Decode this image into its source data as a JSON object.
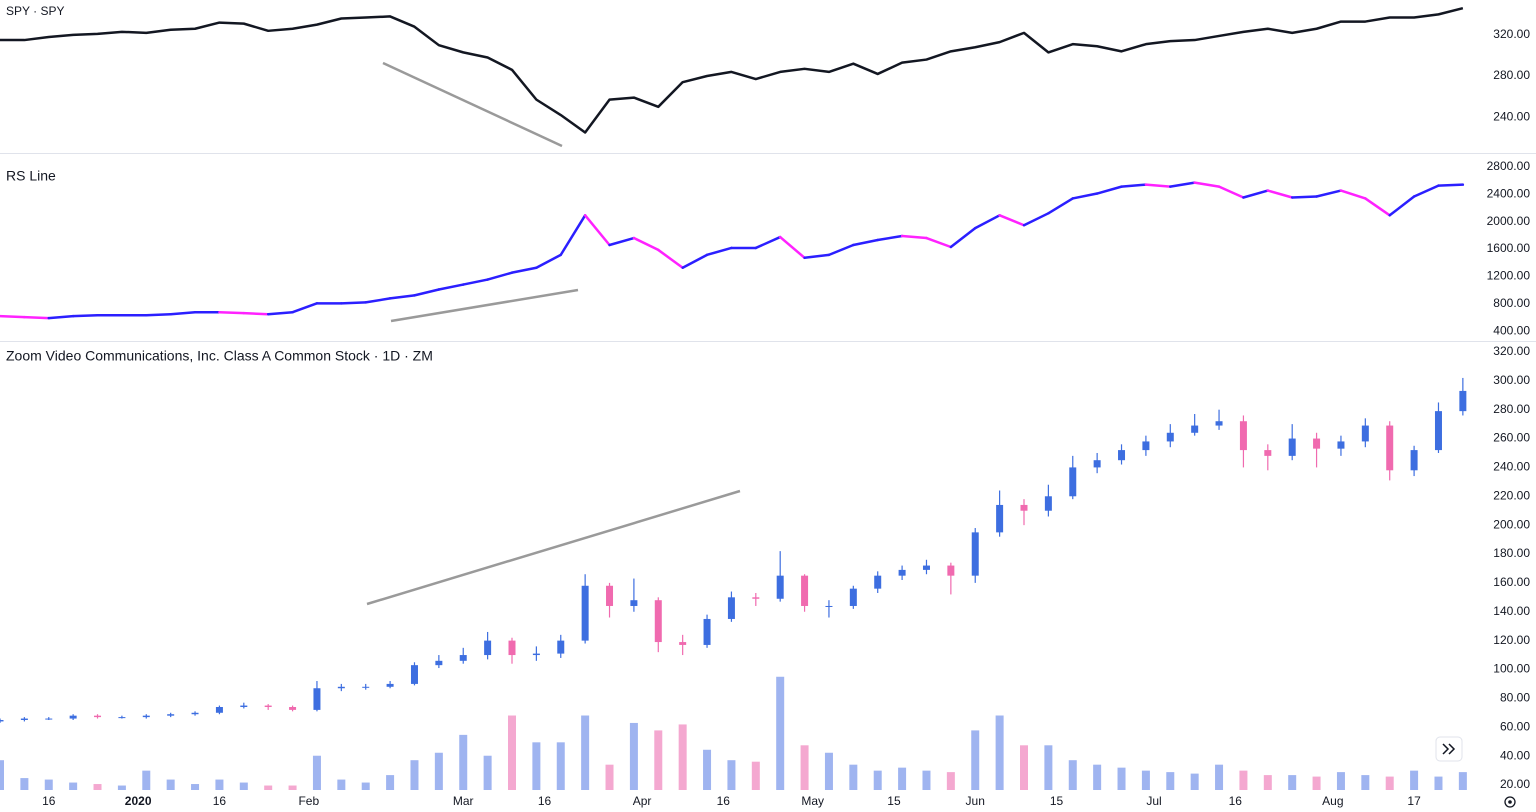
{
  "chart_data": [
    {
      "type": "line",
      "title": "SPY · SPY",
      "color": "#131722",
      "x": [
        0,
        3,
        6,
        9,
        12,
        15,
        18,
        21,
        24,
        27,
        30,
        33,
        36,
        39,
        42,
        45,
        48,
        51,
        54,
        57,
        60,
        63,
        66,
        69,
        72,
        75,
        78,
        81,
        84,
        87,
        90,
        93,
        96,
        99,
        102,
        105,
        108,
        111,
        114,
        117,
        120,
        123,
        126,
        129,
        132,
        135,
        138,
        141,
        144,
        147,
        150,
        153,
        156,
        159,
        162,
        165,
        168,
        171,
        174,
        177,
        180
      ],
      "values": [
        315,
        315,
        318,
        320,
        321,
        323,
        322,
        325,
        326,
        332,
        331,
        324,
        326,
        330,
        336,
        337,
        338,
        328,
        310,
        303,
        298,
        286,
        257,
        242,
        225,
        257,
        259,
        250,
        274,
        280,
        284,
        277,
        284,
        287,
        284,
        292,
        282,
        293,
        296,
        304,
        308,
        313,
        322,
        303,
        311,
        309,
        304,
        311,
        314,
        315,
        319,
        323,
        326,
        322,
        326,
        333,
        333,
        337,
        337,
        340,
        346
      ],
      "xlim": [
        0,
        189
      ],
      "ylim": [
        206,
        354
      ],
      "yticks": [
        {
          "value": 240,
          "label": "240.00"
        },
        {
          "value": 280,
          "label": "280.00"
        },
        {
          "value": 320,
          "label": "320.00"
        }
      ]
    },
    {
      "type": "line",
      "title": "RS Line",
      "up_color": "#2b1fff",
      "down_color": "#ff22ff",
      "x": [
        0,
        3,
        6,
        9,
        12,
        15,
        18,
        21,
        24,
        27,
        30,
        33,
        36,
        39,
        42,
        45,
        48,
        51,
        54,
        57,
        60,
        63,
        66,
        69,
        72,
        75,
        78,
        81,
        84,
        87,
        90,
        93,
        96,
        99,
        102,
        105,
        108,
        111,
        114,
        117,
        120,
        123,
        126,
        129,
        132,
        135,
        138,
        141,
        144,
        147,
        150,
        153,
        156,
        159,
        162,
        165,
        168,
        171,
        174,
        177,
        180
      ],
      "values": [
        618,
        604,
        589,
        618,
        632,
        632,
        632,
        647,
        676,
        676,
        662,
        647,
        676,
        806,
        806,
        820,
        878,
        922,
        1008,
        1080,
        1153,
        1254,
        1326,
        1514,
        2092,
        1658,
        1760,
        1586,
        1326,
        1514,
        1615,
        1615,
        1774,
        1471,
        1514,
        1658,
        1731,
        1789,
        1760,
        1629,
        1904,
        2092,
        1947,
        2121,
        2338,
        2410,
        2511,
        2540,
        2511,
        2569,
        2511,
        2352,
        2453,
        2352,
        2367,
        2453,
        2338,
        2092,
        2367,
        2526,
        2540
      ],
      "xlim": [
        0,
        189
      ],
      "ylim": [
        270,
        2973
      ],
      "yticks": [
        {
          "value": 400,
          "label": "400.00"
        },
        {
          "value": 800,
          "label": "800.00"
        },
        {
          "value": 1200,
          "label": "1200.00"
        },
        {
          "value": 1600,
          "label": "1600.00"
        },
        {
          "value": 2000,
          "label": "2000.00"
        },
        {
          "value": 2400,
          "label": "2400.00"
        },
        {
          "value": 2800,
          "label": "2800.00"
        }
      ]
    },
    {
      "type": "candlestick",
      "title": "Zoom Video Communications, Inc. Class A Common Stock · 1D · ZM",
      "up_color": "#3d6ee0",
      "down_color": "#f06aaf",
      "volume_up_color": "#9fb4f0",
      "volume_down_color": "#f4a8d0",
      "x": [
        0,
        3,
        6,
        9,
        12,
        15,
        18,
        21,
        24,
        27,
        30,
        33,
        36,
        39,
        42,
        45,
        48,
        51,
        54,
        57,
        60,
        63,
        66,
        69,
        72,
        75,
        78,
        81,
        84,
        87,
        90,
        93,
        96,
        99,
        102,
        105,
        108,
        111,
        114,
        117,
        120,
        123,
        126,
        129,
        132,
        135,
        138,
        141,
        144,
        147,
        150,
        153,
        156,
        159,
        162,
        165,
        168,
        171,
        174,
        177,
        180
      ],
      "open": [
        64,
        65,
        66,
        66,
        68,
        67,
        67,
        68,
        69,
        70,
        74,
        75,
        74,
        72,
        87,
        88,
        88,
        90,
        103,
        106,
        110,
        120,
        110,
        111,
        120,
        158,
        144,
        148,
        119,
        117,
        135,
        150,
        149,
        165,
        144,
        144,
        156,
        165,
        169,
        172,
        165,
        195,
        214,
        210,
        220,
        240,
        245,
        252,
        258,
        264,
        269,
        272,
        252,
        248,
        260,
        253,
        258,
        269,
        238,
        252,
        279
      ],
      "high": [
        66,
        67,
        67,
        69,
        69,
        68,
        69,
        70,
        71,
        75,
        77,
        76,
        75,
        92,
        90,
        90,
        92,
        105,
        110,
        115,
        126,
        122,
        116,
        124,
        166,
        160,
        163,
        150,
        124,
        138,
        154,
        153,
        182,
        166,
        148,
        158,
        168,
        172,
        176,
        174,
        198,
        224,
        218,
        228,
        248,
        250,
        256,
        262,
        270,
        277,
        280,
        276,
        256,
        270,
        264,
        262,
        274,
        272,
        255,
        285,
        302
      ],
      "low": [
        63,
        64,
        65,
        65,
        66,
        66,
        66,
        67,
        68,
        69,
        73,
        72,
        71,
        71,
        85,
        86,
        87,
        89,
        101,
        104,
        107,
        104,
        106,
        108,
        118,
        136,
        140,
        112,
        110,
        115,
        133,
        144,
        147,
        140,
        136,
        142,
        153,
        162,
        166,
        152,
        160,
        192,
        200,
        206,
        218,
        236,
        242,
        248,
        254,
        262,
        266,
        240,
        238,
        245,
        240,
        248,
        254,
        231,
        234,
        250,
        276
      ],
      "close": [
        65,
        66,
        66,
        68,
        67,
        67,
        68,
        69,
        70,
        74,
        75,
        74,
        72,
        87,
        88,
        88,
        90,
        103,
        106,
        110,
        120,
        110,
        111,
        120,
        158,
        144,
        148,
        119,
        117,
        135,
        150,
        149,
        165,
        144,
        144,
        156,
        165,
        169,
        172,
        165,
        195,
        214,
        210,
        220,
        240,
        245,
        252,
        258,
        264,
        269,
        272,
        252,
        248,
        260,
        253,
        258,
        269,
        238,
        252,
        279,
        293
      ],
      "volume": [
        20,
        8,
        7,
        5,
        4,
        3,
        13,
        7,
        4,
        7,
        5,
        3,
        3,
        23,
        7,
        5,
        10,
        20,
        25,
        37,
        23,
        50,
        32,
        32,
        50,
        17,
        45,
        40,
        44,
        27,
        20,
        19,
        76,
        30,
        25,
        17,
        13,
        15,
        13,
        12,
        40,
        50,
        30,
        30,
        20,
        17,
        15,
        13,
        12,
        11,
        17,
        13,
        10,
        10,
        9,
        12,
        10,
        9,
        13,
        9,
        12
      ],
      "volume_ylim": [
        0,
        300
      ],
      "xlim": [
        0,
        189
      ],
      "ylim": [
        16.5,
        326.2
      ],
      "yticks": [
        {
          "value": 20,
          "label": "20.00"
        },
        {
          "value": 40,
          "label": "40.00"
        },
        {
          "value": 60,
          "label": "60.00"
        },
        {
          "value": 80,
          "label": "80.00"
        },
        {
          "value": 100,
          "label": "100.00"
        },
        {
          "value": 120,
          "label": "120.00"
        },
        {
          "value": 140,
          "label": "140.00"
        },
        {
          "value": 160,
          "label": "160.00"
        },
        {
          "value": 180,
          "label": "180.00"
        },
        {
          "value": 200,
          "label": "200.00"
        },
        {
          "value": 220,
          "label": "220.00"
        },
        {
          "value": 240,
          "label": "240.00"
        },
        {
          "value": 260,
          "label": "260.00"
        },
        {
          "value": 280,
          "label": "280.00"
        },
        {
          "value": 300,
          "label": "300.00"
        },
        {
          "value": 320,
          "label": "320.00"
        }
      ],
      "xticks": [
        {
          "value": 6,
          "label": "16"
        },
        {
          "value": 17,
          "label": "2020"
        },
        {
          "value": 27,
          "label": "16"
        },
        {
          "value": 38,
          "label": "Feb"
        },
        {
          "value": 57,
          "label": "Mar"
        },
        {
          "value": 67,
          "label": "16"
        },
        {
          "value": 79,
          "label": "Apr"
        },
        {
          "value": 89,
          "label": "16"
        },
        {
          "value": 100,
          "label": "May"
        },
        {
          "value": 110,
          "label": "15"
        },
        {
          "value": 120,
          "label": "Jun"
        },
        {
          "value": 130,
          "label": "15"
        },
        {
          "value": 142,
          "label": "Jul"
        },
        {
          "value": 152,
          "label": "16"
        },
        {
          "value": 164,
          "label": "Aug"
        },
        {
          "value": 174,
          "label": "17"
        }
      ]
    }
  ]
}
